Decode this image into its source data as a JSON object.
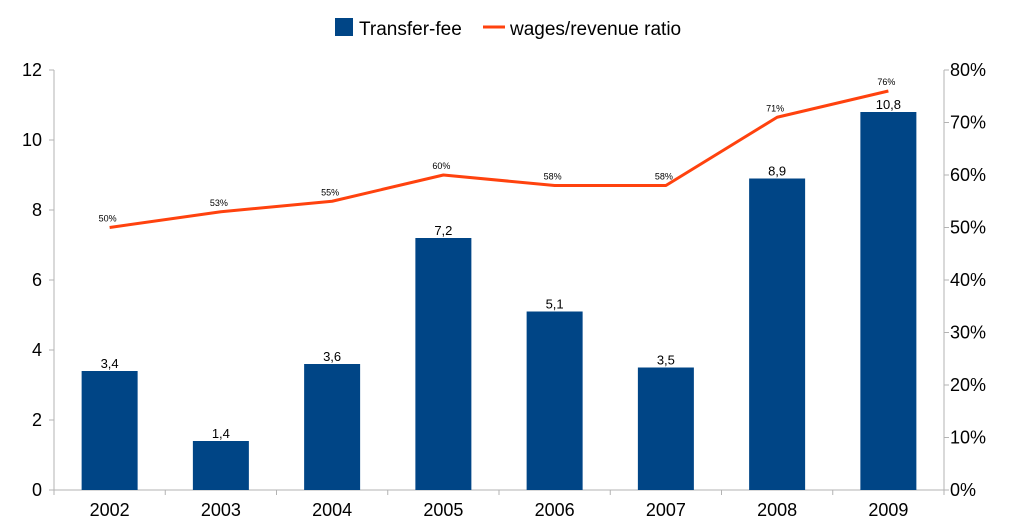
{
  "chart_data": {
    "type": "bar",
    "categories": [
      "2002",
      "2003",
      "2004",
      "2005",
      "2006",
      "2007",
      "2008",
      "2009"
    ],
    "series": [
      {
        "name": "Transfer-fee",
        "kind": "bar",
        "axis": "left",
        "color": "#004586",
        "values": [
          3.4,
          1.4,
          3.6,
          7.2,
          5.1,
          3.5,
          8.9,
          10.8
        ],
        "labels": [
          "3,4",
          "1,4",
          "3,6",
          "7,2",
          "5,1",
          "3,5",
          "8,9",
          "10,8"
        ]
      },
      {
        "name": "wages/revenue ratio",
        "kind": "line",
        "axis": "right",
        "color": "#ff420e",
        "values": [
          0.5,
          0.53,
          0.55,
          0.6,
          0.58,
          0.58,
          0.71,
          0.76
        ],
        "labels": [
          "50%",
          "53%",
          "55%",
          "60%",
          "58%",
          "58%",
          "71%",
          "76%"
        ]
      }
    ],
    "y_left": {
      "ylim": [
        0,
        12
      ],
      "ticks": [
        "0",
        "2",
        "4",
        "6",
        "8",
        "10",
        "12"
      ]
    },
    "y_right": {
      "ylim": [
        0,
        0.8
      ],
      "ticks": [
        "0%",
        "10%",
        "20%",
        "30%",
        "40%",
        "50%",
        "60%",
        "70%",
        "80%"
      ]
    },
    "grid": false,
    "legend_position": "top-center"
  }
}
